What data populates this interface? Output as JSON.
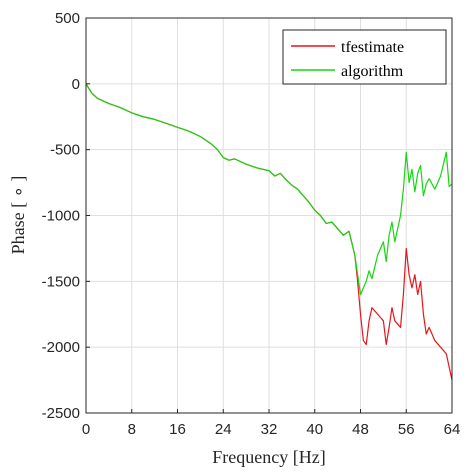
{
  "chart_data": {
    "type": "line",
    "title": "",
    "xlabel": "Frequency [Hz]",
    "ylabel": "Phase [ ∘ ]",
    "xlim": [
      0,
      64
    ],
    "ylim": [
      -2500,
      500
    ],
    "xticks": [
      "0",
      "8",
      "16",
      "24",
      "32",
      "40",
      "48",
      "56",
      "64"
    ],
    "yticks": [
      "500",
      "0",
      "-500",
      "-1000",
      "-1500",
      "-2000",
      "-2500"
    ],
    "grid": true,
    "legend_position": "top-right",
    "series": [
      {
        "name": "tfestimate",
        "color": "#e8141a",
        "x": [
          0,
          1,
          2,
          4,
          6,
          8,
          10,
          12,
          14,
          16,
          18,
          20,
          22,
          23,
          24,
          25,
          26,
          28,
          30,
          32,
          33,
          34,
          35,
          36,
          37,
          38,
          39,
          40,
          41,
          42,
          43,
          44,
          45,
          46,
          47,
          47.5,
          48,
          48.5,
          49,
          49.5,
          50,
          51,
          52,
          52.5,
          53,
          53.5,
          54,
          55,
          55.5,
          56,
          56.5,
          57,
          57.5,
          58,
          58.5,
          59,
          59.5,
          60,
          61,
          62,
          63,
          63.5,
          64
        ],
        "y": [
          0,
          -70,
          -110,
          -150,
          -180,
          -220,
          -250,
          -270,
          -300,
          -330,
          -360,
          -400,
          -460,
          -500,
          -560,
          -580,
          -570,
          -610,
          -640,
          -660,
          -700,
          -680,
          -730,
          -770,
          -800,
          -850,
          -900,
          -960,
          -1000,
          -1060,
          -1050,
          -1100,
          -1150,
          -1120,
          -1300,
          -1500,
          -1750,
          -1950,
          -1980,
          -1800,
          -1700,
          -1750,
          -1800,
          -1980,
          -1850,
          -1700,
          -1800,
          -1850,
          -1600,
          -1250,
          -1450,
          -1550,
          -1450,
          -1600,
          -1500,
          -1750,
          -1900,
          -1850,
          -1950,
          -2000,
          -2050,
          -2150,
          -2250
        ]
      },
      {
        "name": "algorithm",
        "color": "#15d60f",
        "x": [
          0,
          1,
          2,
          4,
          6,
          8,
          10,
          12,
          14,
          16,
          18,
          20,
          22,
          23,
          24,
          25,
          26,
          28,
          30,
          32,
          33,
          34,
          35,
          36,
          37,
          38,
          39,
          40,
          41,
          42,
          43,
          44,
          45,
          46,
          47,
          47.5,
          48,
          48.5,
          49,
          49.5,
          50,
          51,
          52,
          52.5,
          53,
          53.5,
          54,
          55,
          55.5,
          56,
          56.5,
          57,
          57.5,
          58,
          58.5,
          59,
          59.5,
          60,
          61,
          62,
          63,
          63.5,
          64
        ],
        "y": [
          0,
          -70,
          -110,
          -150,
          -180,
          -220,
          -250,
          -270,
          -300,
          -330,
          -360,
          -400,
          -460,
          -500,
          -560,
          -580,
          -570,
          -610,
          -640,
          -660,
          -700,
          -680,
          -730,
          -770,
          -800,
          -850,
          -900,
          -960,
          -1000,
          -1060,
          -1050,
          -1100,
          -1150,
          -1120,
          -1300,
          -1450,
          -1600,
          -1550,
          -1500,
          -1420,
          -1480,
          -1300,
          -1200,
          -1350,
          -1150,
          -1050,
          -1200,
          -1000,
          -800,
          -520,
          -750,
          -650,
          -820,
          -680,
          -620,
          -850,
          -760,
          -720,
          -800,
          -700,
          -520,
          -780,
          -760
        ]
      }
    ]
  }
}
